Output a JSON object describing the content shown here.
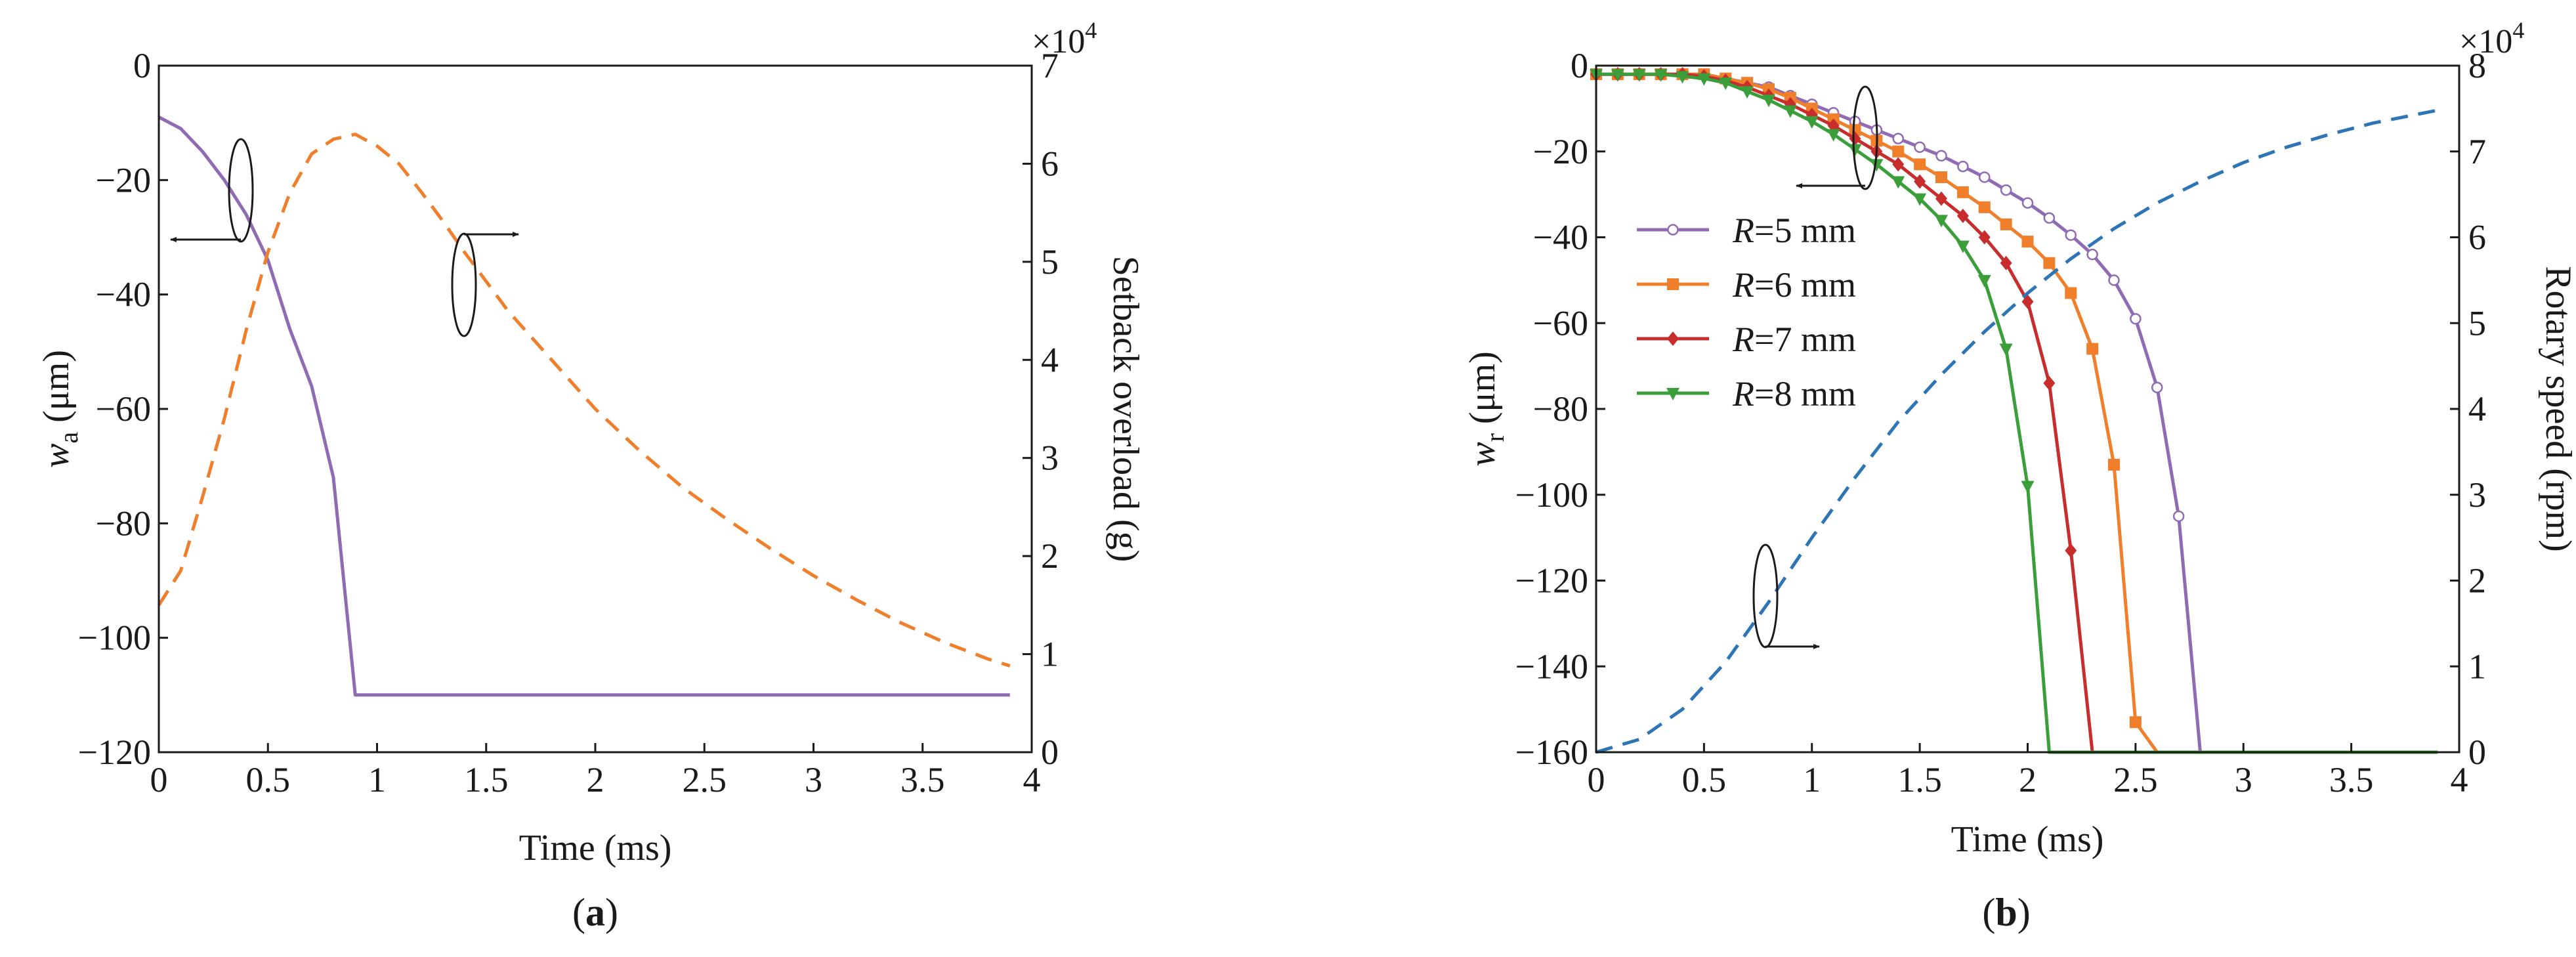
{
  "chart_data": [
    {
      "id": "a",
      "type": "line",
      "panel_label": "(a)",
      "title": "",
      "xlabel": "Time (ms)",
      "ylabel_left_symbol": "w",
      "ylabel_left_sub": "a",
      "ylabel_left_unit": " (μm)",
      "ylabel_right": "Setback overload (g)",
      "right_axis_multiplier": "×10",
      "right_axis_exponent": "4",
      "xlim": [
        0,
        4
      ],
      "ylim_left": [
        -120,
        0
      ],
      "ylim_right": [
        0,
        7
      ],
      "x_ticks": [
        "0",
        "0.5",
        "1",
        "1.5",
        "2",
        "2.5",
        "3",
        "3.5",
        "4"
      ],
      "x_tick_values": [
        0,
        0.5,
        1,
        1.5,
        2,
        2.5,
        3,
        3.5,
        4
      ],
      "y_left_ticks": [
        "0",
        "−20",
        "−40",
        "−60",
        "−80",
        "−100",
        "−120"
      ],
      "y_left_tick_values": [
        0,
        -20,
        -40,
        -60,
        -80,
        -100,
        -120
      ],
      "y_right_ticks": [
        "0",
        "1",
        "2",
        "3",
        "4",
        "5",
        "6",
        "7"
      ],
      "y_right_tick_values": [
        0,
        1,
        2,
        3,
        4,
        5,
        6,
        7
      ],
      "grid": false,
      "series": [
        {
          "name": "w_a",
          "axis": "left",
          "style": "solid",
          "color": "#8e6bb3",
          "marker": "none",
          "x": [
            0,
            0.1,
            0.2,
            0.3,
            0.4,
            0.5,
            0.6,
            0.7,
            0.8,
            0.9,
            1.0,
            3.9
          ],
          "y": [
            -9,
            -11,
            -15,
            -20,
            -26,
            -34,
            -46,
            -56,
            -72,
            -110,
            -110,
            -110
          ]
        },
        {
          "name": "Setback overload",
          "axis": "right",
          "style": "dashed",
          "color": "#f07f2c",
          "marker": "none",
          "x": [
            0,
            0.1,
            0.2,
            0.3,
            0.4,
            0.5,
            0.6,
            0.7,
            0.8,
            0.9,
            1.0,
            1.1,
            1.2,
            1.3,
            1.4,
            1.5,
            1.6,
            1.8,
            2.0,
            2.2,
            2.4,
            2.6,
            2.8,
            3.0,
            3.2,
            3.4,
            3.6,
            3.8,
            3.9
          ],
          "y": [
            1.5,
            1.85,
            2.6,
            3.4,
            4.3,
            5.1,
            5.7,
            6.1,
            6.25,
            6.3,
            6.18,
            6.0,
            5.72,
            5.42,
            5.1,
            4.8,
            4.5,
            4.0,
            3.5,
            3.08,
            2.7,
            2.38,
            2.08,
            1.8,
            1.55,
            1.32,
            1.12,
            0.95,
            0.88
          ]
        }
      ],
      "annotations": [
        {
          "text": "",
          "target": "w_a",
          "arrow": "left"
        },
        {
          "text": "",
          "target": "Setback overload",
          "arrow": "right"
        }
      ]
    },
    {
      "id": "b",
      "type": "line",
      "panel_label": "(b)",
      "title": "",
      "xlabel": "Time (ms)",
      "ylabel_left_symbol": "w",
      "ylabel_left_sub": "r",
      "ylabel_left_unit": " (μm)",
      "ylabel_right": "Rotary speed (rpm)",
      "right_axis_multiplier": "×10",
      "right_axis_exponent": "4",
      "xlim": [
        0,
        4
      ],
      "ylim_left": [
        -160,
        0
      ],
      "ylim_right": [
        0,
        8
      ],
      "x_ticks": [
        "0",
        "0.5",
        "1",
        "1.5",
        "2",
        "2.5",
        "3",
        "3.5",
        "4"
      ],
      "x_tick_values": [
        0,
        0.5,
        1,
        1.5,
        2,
        2.5,
        3,
        3.5,
        4
      ],
      "y_left_ticks": [
        "0",
        "−20",
        "−40",
        "−60",
        "−80",
        "−100",
        "−120",
        "−140",
        "−160"
      ],
      "y_left_tick_values": [
        0,
        -20,
        -40,
        -60,
        -80,
        -100,
        -120,
        -140,
        -160
      ],
      "y_right_ticks": [
        "0",
        "1",
        "2",
        "3",
        "4",
        "5",
        "6",
        "7",
        "8"
      ],
      "y_right_tick_values": [
        0,
        1,
        2,
        3,
        4,
        5,
        6,
        7,
        8
      ],
      "grid": false,
      "legend_position": "middle-left",
      "series": [
        {
          "name": "R=5 mm",
          "legend_var": "R",
          "legend_rest": "=5 mm",
          "axis": "left",
          "style": "solid",
          "color": "#8e6bb3",
          "marker": "circle",
          "x": [
            0,
            0.1,
            0.2,
            0.3,
            0.4,
            0.5,
            0.6,
            0.7,
            0.8,
            0.9,
            1.0,
            1.1,
            1.2,
            1.3,
            1.4,
            1.5,
            1.6,
            1.7,
            1.8,
            1.9,
            2.0,
            2.1,
            2.2,
            2.3,
            2.4,
            2.5,
            2.6,
            2.7,
            2.8,
            2.9,
            3.9
          ],
          "y": [
            -2,
            -2,
            -2,
            -2,
            -2,
            -2,
            -3,
            -4,
            -5,
            -7,
            -9,
            -11,
            -13,
            -15,
            -17,
            -19,
            -21,
            -23.5,
            -26,
            -29,
            -32,
            -35.5,
            -39.5,
            -44,
            -50,
            -59,
            -75,
            -105,
            -160,
            -160,
            -160
          ]
        },
        {
          "name": "R=6 mm",
          "legend_var": "R",
          "legend_rest": "=6 mm",
          "axis": "left",
          "style": "solid",
          "color": "#f07f2c",
          "marker": "square",
          "x": [
            0,
            0.1,
            0.2,
            0.3,
            0.4,
            0.5,
            0.6,
            0.7,
            0.8,
            0.9,
            1.0,
            1.1,
            1.2,
            1.3,
            1.4,
            1.5,
            1.6,
            1.7,
            1.8,
            1.9,
            2.0,
            2.1,
            2.2,
            2.3,
            2.4,
            2.5,
            2.6,
            3.9
          ],
          "y": [
            -2,
            -2,
            -2,
            -2,
            -2,
            -2,
            -3,
            -4,
            -5.5,
            -7.5,
            -10,
            -12.5,
            -15,
            -17.5,
            -20,
            -23,
            -26,
            -29.5,
            -33,
            -37,
            -41,
            -46,
            -53,
            -66,
            -93,
            -153,
            -160,
            -160
          ]
        },
        {
          "name": "R=7 mm",
          "legend_var": "R",
          "legend_rest": "=7 mm",
          "axis": "left",
          "style": "solid",
          "color": "#c72d2d",
          "marker": "diamond",
          "x": [
            0,
            0.1,
            0.2,
            0.3,
            0.4,
            0.5,
            0.6,
            0.7,
            0.8,
            0.9,
            1.0,
            1.1,
            1.2,
            1.3,
            1.4,
            1.5,
            1.6,
            1.7,
            1.8,
            1.9,
            2.0,
            2.1,
            2.2,
            2.3,
            3.9
          ],
          "y": [
            -2,
            -2,
            -2,
            -2,
            -2,
            -2.5,
            -3.5,
            -5,
            -7,
            -9,
            -11.5,
            -14,
            -17,
            -20,
            -23,
            -27,
            -31,
            -35,
            -40,
            -46,
            -55,
            -74,
            -113,
            -160,
            -160
          ]
        },
        {
          "name": "R=8 mm",
          "legend_var": "R",
          "legend_rest": "=8 mm",
          "axis": "left",
          "style": "solid",
          "color": "#3a9e3a",
          "marker": "triangle-down",
          "x": [
            0,
            0.1,
            0.2,
            0.3,
            0.4,
            0.5,
            0.6,
            0.7,
            0.8,
            0.9,
            1.0,
            1.1,
            1.2,
            1.3,
            1.4,
            1.5,
            1.6,
            1.7,
            1.8,
            1.9,
            2.0,
            2.1,
            3.9
          ],
          "y": [
            -2,
            -2,
            -2,
            -2,
            -2.5,
            -3,
            -4,
            -6,
            -8,
            -10.5,
            -13,
            -16,
            -19.5,
            -23,
            -27,
            -31,
            -36,
            -42,
            -50,
            -66,
            -98,
            -160,
            -160
          ]
        },
        {
          "name": "Rotary speed",
          "axis": "right",
          "style": "dashed",
          "color": "#2e75b6",
          "marker": "none",
          "x": [
            0,
            0.2,
            0.4,
            0.6,
            0.8,
            1.0,
            1.2,
            1.4,
            1.6,
            1.8,
            2.0,
            2.2,
            2.4,
            2.6,
            2.8,
            3.0,
            3.2,
            3.4,
            3.6,
            3.8,
            3.9
          ],
          "y": [
            0,
            0.15,
            0.5,
            1.05,
            1.75,
            2.5,
            3.2,
            3.85,
            4.4,
            4.9,
            5.35,
            5.75,
            6.1,
            6.4,
            6.65,
            6.87,
            7.05,
            7.2,
            7.33,
            7.43,
            7.48
          ]
        }
      ],
      "annotations": [
        {
          "text": "",
          "target": "w_r",
          "arrow": "left"
        },
        {
          "text": "",
          "target": "Rotary speed",
          "arrow": "right"
        }
      ]
    }
  ]
}
